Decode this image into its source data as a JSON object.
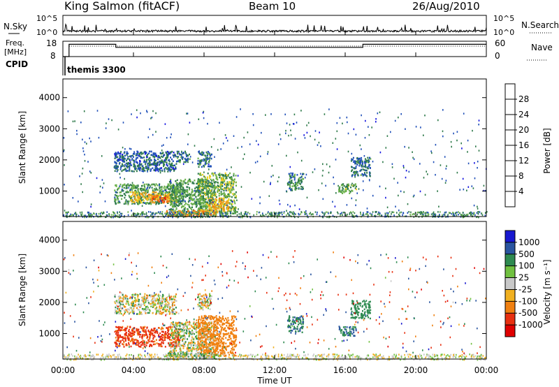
{
  "header": {
    "station": "King Salmon (fitACF)",
    "beam": "Beam 10",
    "date": "26/Aug/2010"
  },
  "noise_panel": {
    "left_label": "N.Sky",
    "right_label": "N.Search",
    "tick_top": "10^5",
    "tick_bottom": "10^0"
  },
  "freq_panel": {
    "left_label_line1": "Freq.",
    "left_label_line2": "[MHz]",
    "left_ticks": [
      "18",
      "8"
    ],
    "right_label": "Nave",
    "right_ticks": [
      "60",
      "0"
    ]
  },
  "cpid_panel": {
    "label": "CPID",
    "value": "themis 3300"
  },
  "x_axis": {
    "title": "Time UT",
    "ticks": [
      "00:00",
      "04:00",
      "08:00",
      "12:00",
      "16:00",
      "20:00",
      "00:00"
    ]
  },
  "y_axis": {
    "title": "Slant Range [km]",
    "ticks": [
      "1000",
      "2000",
      "3000",
      "4000"
    ]
  },
  "power_colorbar": {
    "title": "Power [dB]",
    "ticks": [
      "4",
      "8",
      "12",
      "16",
      "20",
      "24",
      "28"
    ],
    "colors": [
      "#1515e0",
      "#1f4fb8",
      "#2e7a4a",
      "#6ab04a",
      "#f0d020",
      "#f0a020",
      "#f07010",
      "#e02010"
    ]
  },
  "velocity_colorbar": {
    "title": "Velocity [m s⁻¹]",
    "ticks": [
      "1000",
      "500",
      "100",
      "25",
      "-25",
      "-100",
      "-500",
      "-1000"
    ],
    "colors": [
      "#1818d0",
      "#2a55a0",
      "#2e8a50",
      "#70c040",
      "#c8c8c8",
      "#f0b020",
      "#f08010",
      "#e83010",
      "#e00000"
    ]
  },
  "chart_data": [
    {
      "type": "heatmap",
      "panel": "power",
      "xlabel": "Time UT",
      "ylabel": "Slant Range [km]",
      "x_range_hours": [
        0,
        24
      ],
      "ylim": [
        180,
        4600
      ],
      "colorbar_label": "Power [dB]",
      "colorbar_range": [
        0,
        30
      ],
      "regions": [
        {
          "t": [
            2.9,
            6.4
          ],
          "r": [
            1650,
            2300
          ],
          "val": 7
        },
        {
          "t": [
            6.4,
            7.2
          ],
          "r": [
            1950,
            2300
          ],
          "val": 8
        },
        {
          "t": [
            7.6,
            8.4
          ],
          "r": [
            1800,
            2300
          ],
          "val": 8
        },
        {
          "t": [
            2.9,
            6.8
          ],
          "r": [
            600,
            1250
          ],
          "val": 11
        },
        {
          "t": [
            3.8,
            6.4
          ],
          "r": [
            650,
            1000
          ],
          "val": 19
        },
        {
          "t": [
            5.0,
            6.0
          ],
          "r": [
            650,
            880
          ],
          "val": 26
        },
        {
          "t": [
            6.0,
            8.6
          ],
          "r": [
            250,
            1400
          ],
          "val": 11
        },
        {
          "t": [
            7.6,
            9.8
          ],
          "r": [
            300,
            1600
          ],
          "val": 13
        },
        {
          "t": [
            8.2,
            9.4
          ],
          "r": [
            400,
            800
          ],
          "val": 20
        },
        {
          "t": [
            5.8,
            8.8
          ],
          "r": [
            200,
            400
          ],
          "val": 22
        },
        {
          "t": [
            12.7,
            13.6
          ],
          "r": [
            1050,
            1600
          ],
          "val": 10
        },
        {
          "t": [
            15.6,
            16.6
          ],
          "r": [
            950,
            1250
          ],
          "val": 12
        },
        {
          "t": [
            16.3,
            17.4
          ],
          "r": [
            1500,
            2100
          ],
          "val": 8
        }
      ]
    },
    {
      "type": "heatmap",
      "panel": "velocity",
      "xlabel": "Time UT",
      "ylabel": "Slant Range [km]",
      "x_range_hours": [
        0,
        24
      ],
      "ylim": [
        180,
        4600
      ],
      "colorbar_label": "Velocity [m s⁻¹]",
      "colorbar_range": [
        -1000,
        1000
      ],
      "regions": [
        {
          "t": [
            2.9,
            6.4
          ],
          "r": [
            1650,
            2300
          ],
          "val": 0
        },
        {
          "t": [
            7.6,
            8.4
          ],
          "r": [
            1800,
            2300
          ],
          "val": 0
        },
        {
          "t": [
            2.9,
            6.6
          ],
          "r": [
            600,
            1250
          ],
          "val": -350
        },
        {
          "t": [
            6.0,
            8.6
          ],
          "r": [
            250,
            1400
          ],
          "val": 0
        },
        {
          "t": [
            7.6,
            9.8
          ],
          "r": [
            300,
            1600
          ],
          "val": -200
        },
        {
          "t": [
            5.8,
            8.8
          ],
          "r": [
            200,
            400
          ],
          "val": 60
        },
        {
          "t": [
            12.7,
            13.6
          ],
          "r": [
            1050,
            1600
          ],
          "val": 300
        },
        {
          "t": [
            15.6,
            16.6
          ],
          "r": [
            950,
            1250
          ],
          "val": 300
        },
        {
          "t": [
            16.3,
            17.4
          ],
          "r": [
            1500,
            2100
          ],
          "val": 200
        }
      ]
    },
    {
      "type": "line",
      "panel": "frequency",
      "ylabel": "Freq. [MHz]",
      "ylim": [
        8,
        18
      ],
      "x_hours": [
        0,
        0.35,
        0.35,
        3.0,
        3.0,
        17.0,
        17.0,
        24
      ],
      "values": [
        8,
        8,
        16,
        16,
        14,
        14,
        16,
        16
      ]
    },
    {
      "type": "line",
      "panel": "noise",
      "ylabel": "N.Sky",
      "yscale": "log",
      "ylim": [
        1,
        100000
      ]
    }
  ]
}
